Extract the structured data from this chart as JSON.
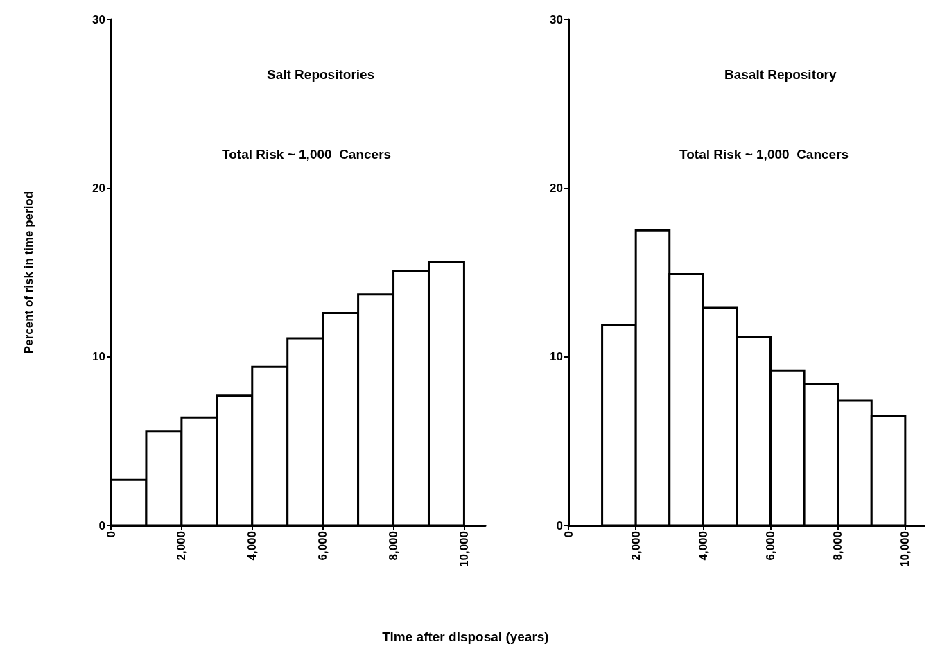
{
  "chart_data": [
    {
      "type": "histogram",
      "title": "Salt Repositories",
      "annotations": [
        "Total Risk ~ 1,000  Cancers"
      ],
      "xlabel": "Time after disposal (years)",
      "ylabel": "Percent of risk in time period",
      "bins": [
        0,
        1000,
        2000,
        3000,
        4000,
        5000,
        6000,
        7000,
        8000,
        9000,
        10000
      ],
      "values": [
        2.7,
        5.6,
        6.4,
        7.7,
        9.4,
        11.1,
        12.6,
        13.7,
        15.1,
        15.6
      ],
      "color": "#ffffff",
      "xlim": [
        0,
        10600
      ],
      "xticks": [
        0,
        {
          "value": 2000,
          "label": "2,000"
        },
        {
          "value": 4000,
          "label": "4,000"
        },
        {
          "value": 6000,
          "label": "6,000"
        },
        {
          "value": 8000,
          "label": "8,000"
        },
        {
          "value": 10000,
          "label": "10,000"
        }
      ],
      "ylim": [
        0,
        30
      ],
      "yticks": [
        0,
        10,
        20,
        30
      ]
    },
    {
      "type": "histogram",
      "title": "Basalt Repository",
      "annotations": [
        "Total Risk ~ 1,000  Cancers"
      ],
      "bins": [
        1000,
        2000,
        3000,
        4000,
        5000,
        6000,
        7000,
        8000,
        9000,
        10000
      ],
      "values": [
        11.9,
        17.5,
        14.9,
        12.9,
        11.2,
        9.2,
        8.4,
        7.4,
        6.5
      ],
      "color": "#ffffff",
      "xlim": [
        0,
        10600
      ],
      "xticks": [
        0,
        {
          "value": 2000,
          "label": "2,000"
        },
        {
          "value": 4000,
          "label": "4,000"
        },
        {
          "value": 6000,
          "label": "6,000"
        },
        {
          "value": 8000,
          "label": "8,000"
        },
        {
          "value": 10000,
          "label": "10,000"
        }
      ],
      "ylim": [
        0,
        30
      ],
      "yticks": [
        0,
        10,
        20,
        30
      ]
    }
  ]
}
